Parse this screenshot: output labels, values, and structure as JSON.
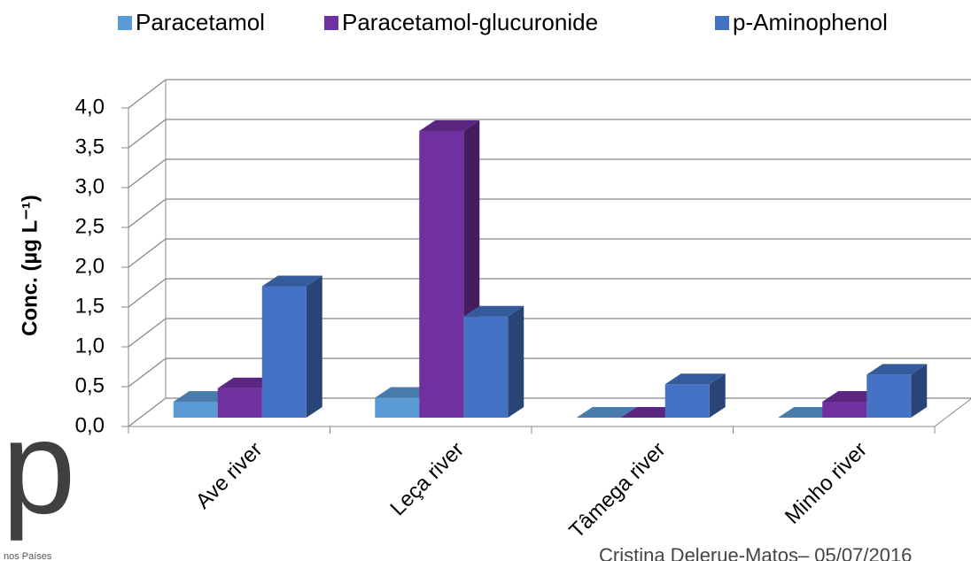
{
  "chart_data": {
    "type": "bar3d",
    "y_label": "Conc. (µg L⁻¹)",
    "categories": [
      "Ave river",
      "Leça river",
      "Tâmega river",
      "Minho river"
    ],
    "series": [
      {
        "name": "Paracetamol",
        "color": "#5b9bd5",
        "values": [
          0.2,
          0.25,
          0,
          0
        ]
      },
      {
        "name": "Paracetamol-glucuronide",
        "color": "#7030a0",
        "values": [
          0.37,
          3.6,
          0,
          0.2
        ]
      },
      {
        "name": "p-Aminophenol",
        "color": "#4472c4",
        "values": [
          1.65,
          1.27,
          0.42,
          0.54
        ]
      }
    ],
    "ylim": [
      0,
      4
    ],
    "yticks": [
      {
        "value": 0,
        "label": "0,0"
      },
      {
        "value": 0.5,
        "label": "0,5"
      },
      {
        "value": 1,
        "label": "1,0"
      },
      {
        "value": 1.5,
        "label": "1,5"
      },
      {
        "value": 2,
        "label": "2,0"
      },
      {
        "value": 2.5,
        "label": "2,5"
      },
      {
        "value": 3,
        "label": "3,0"
      },
      {
        "value": 3.5,
        "label": "3,5"
      },
      {
        "value": 4,
        "label": "4,0"
      }
    ],
    "grid": true,
    "legend": "top"
  },
  "logo": {
    "letter": "p",
    "text": "nos Países"
  },
  "footer": "Cristina Delerue-Matos– 05/07/2016"
}
